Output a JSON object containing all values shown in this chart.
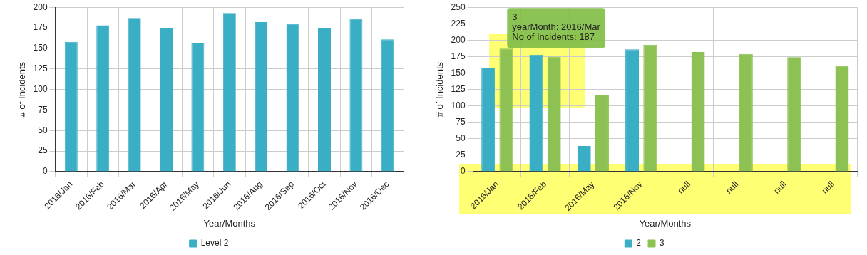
{
  "chart_data": [
    {
      "type": "bar",
      "xlabel": "Year/Months",
      "ylabel": "# of Incidents",
      "categories": [
        "2016/Jan",
        "2016/Feb",
        "2016/Mar",
        "2016/Apr",
        "2016/May",
        "2016/Jun",
        "2016/Aug",
        "2016/Sep",
        "2016/Oct",
        "2016/Nov",
        "2016/Dec"
      ],
      "series": [
        {
          "name": "Level 2",
          "color": "#3aaec4",
          "values": [
            158,
            178,
            187,
            175,
            156,
            193,
            182,
            180,
            175,
            186,
            161
          ]
        }
      ],
      "ylim": [
        0,
        200
      ],
      "yticks": [
        0,
        25,
        50,
        75,
        100,
        125,
        150,
        175,
        200
      ],
      "grid": true,
      "legend": "bottom"
    },
    {
      "type": "bar",
      "xlabel": "Year/Months",
      "ylabel": "# of Incidents",
      "categories": [
        "2016/Jan",
        "2016/Feb",
        "2016/May",
        "2016/Nov",
        "null",
        "null",
        "null",
        "null"
      ],
      "series": [
        {
          "name": "2",
          "color": "#3aaec4",
          "values": [
            158,
            178,
            39,
            186,
            null,
            null,
            null,
            null
          ]
        },
        {
          "name": "3",
          "color": "#8dc153",
          "values": [
            187,
            175,
            117,
            193,
            182,
            179,
            174,
            161
          ]
        }
      ],
      "ylim": [
        0,
        250
      ],
      "yticks": [
        0,
        25,
        50,
        75,
        100,
        125,
        150,
        175,
        200,
        225,
        250
      ],
      "grid": true,
      "legend": "bottom",
      "annotations": [
        {
          "text": "3\nyearMonth: 2016/Mar\nNo of Incidents: 187",
          "x": "2016/Jan",
          "y": 187
        }
      ]
    }
  ]
}
